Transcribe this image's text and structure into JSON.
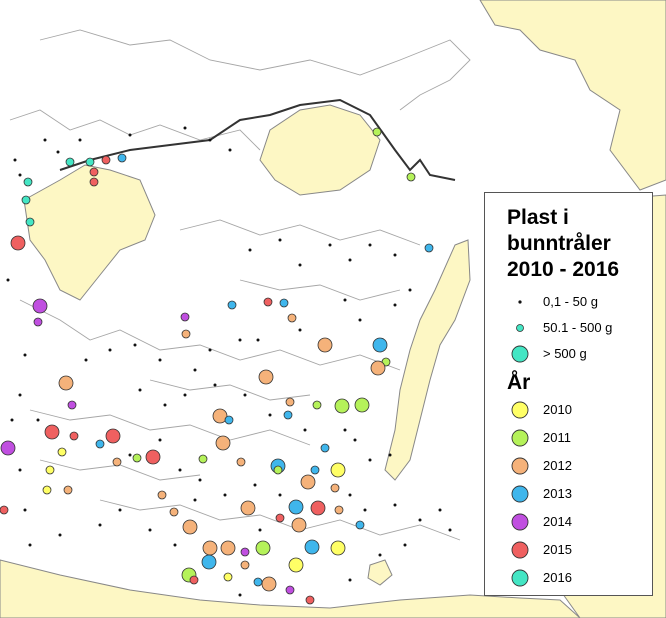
{
  "legend": {
    "title_lines": [
      "Plast i",
      "bunntråler",
      "2010 - 2016"
    ],
    "size_header": "",
    "sizes": [
      {
        "label": "0,1 - 50 g",
        "radius_class": "small"
      },
      {
        "label": "50.1 - 500 g",
        "radius_class": "medium"
      },
      {
        "label": "> 500 g",
        "radius_class": "large"
      }
    ],
    "year_header": "År",
    "years": [
      {
        "label": "2010",
        "color": "#ffff66"
      },
      {
        "label": "2011",
        "color": "#b5f25a"
      },
      {
        "label": "2012",
        "color": "#f5b27a"
      },
      {
        "label": "2013",
        "color": "#3fb6ec"
      },
      {
        "label": "2014",
        "color": "#c04fe0"
      },
      {
        "label": "2015",
        "color": "#ef6060"
      },
      {
        "label": "2016",
        "color": "#44e6c4"
      }
    ]
  },
  "colors": {
    "land": "#fdf7c4",
    "land_outline": "#777777",
    "contour": "#9a9a9a",
    "ice_edge": "#333333",
    "sea": "#ffffff",
    "small_dot": "#111111"
  }
}
